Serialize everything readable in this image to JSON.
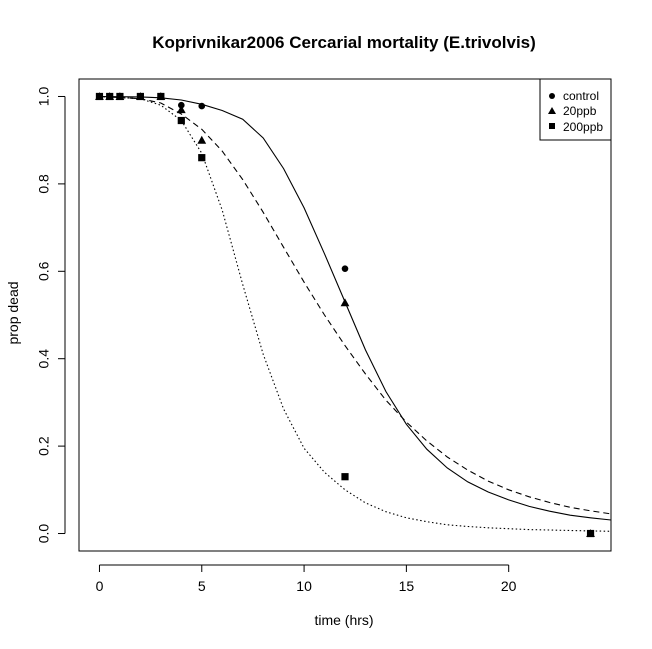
{
  "chart_data": {
    "type": "scatter",
    "title": "Koprivnikar2006 Cercarial mortality (E.trivolvis)",
    "xlabel": "time (hrs)",
    "ylabel": "prop dead",
    "xlim": [
      -1,
      25
    ],
    "ylim": [
      -0.04,
      1.04
    ],
    "xticks": [
      0,
      5,
      10,
      15,
      20
    ],
    "yticks": [
      0.0,
      0.2,
      0.4,
      0.6,
      0.8,
      1.0
    ],
    "xtick_labels": [
      "0",
      "5",
      "10",
      "15",
      "20"
    ],
    "ytick_labels": [
      "0.0",
      "0.2",
      "0.4",
      "0.6",
      "0.8",
      "1.0"
    ],
    "legend_position": "top-right",
    "series": [
      {
        "name": "control",
        "marker": "circle",
        "line": "solid",
        "points": [
          [
            0,
            1.0
          ],
          [
            0.5,
            1.0
          ],
          [
            1,
            1.0
          ],
          [
            2,
            1.0
          ],
          [
            3,
            1.0
          ],
          [
            4,
            0.98
          ],
          [
            5,
            0.978
          ],
          [
            12,
            0.606
          ],
          [
            24,
            0.0
          ]
        ],
        "curve": [
          [
            0,
            1.0
          ],
          [
            2,
            0.999
          ],
          [
            3,
            0.997
          ],
          [
            4,
            0.992
          ],
          [
            5,
            0.982
          ],
          [
            6,
            0.968
          ],
          [
            7,
            0.948
          ],
          [
            8,
            0.905
          ],
          [
            9,
            0.835
          ],
          [
            10,
            0.745
          ],
          [
            11,
            0.64
          ],
          [
            12,
            0.53
          ],
          [
            13,
            0.42
          ],
          [
            14,
            0.325
          ],
          [
            15,
            0.25
          ],
          [
            16,
            0.193
          ],
          [
            17,
            0.15
          ],
          [
            18,
            0.118
          ],
          [
            19,
            0.095
          ],
          [
            20,
            0.077
          ],
          [
            21,
            0.062
          ],
          [
            22,
            0.051
          ],
          [
            23,
            0.042
          ],
          [
            24,
            0.036
          ],
          [
            25,
            0.031
          ]
        ]
      },
      {
        "name": "20ppb",
        "marker": "triangle",
        "line": "dashed",
        "points": [
          [
            0,
            1.0
          ],
          [
            0.5,
            1.0
          ],
          [
            1,
            1.0
          ],
          [
            2,
            1.0
          ],
          [
            3,
            1.0
          ],
          [
            4,
            0.97
          ],
          [
            5,
            0.9
          ],
          [
            12,
            0.528
          ],
          [
            24,
            0.0
          ]
        ],
        "curve": [
          [
            0,
            1.0
          ],
          [
            2,
            0.995
          ],
          [
            3,
            0.985
          ],
          [
            4,
            0.96
          ],
          [
            5,
            0.925
          ],
          [
            6,
            0.875
          ],
          [
            7,
            0.81
          ],
          [
            8,
            0.735
          ],
          [
            9,
            0.655
          ],
          [
            10,
            0.575
          ],
          [
            11,
            0.5
          ],
          [
            12,
            0.43
          ],
          [
            13,
            0.365
          ],
          [
            14,
            0.305
          ],
          [
            15,
            0.255
          ],
          [
            16,
            0.212
          ],
          [
            17,
            0.175
          ],
          [
            18,
            0.145
          ],
          [
            19,
            0.12
          ],
          [
            20,
            0.1
          ],
          [
            21,
            0.084
          ],
          [
            22,
            0.071
          ],
          [
            23,
            0.06
          ],
          [
            24,
            0.052
          ],
          [
            25,
            0.045
          ]
        ]
      },
      {
        "name": "200ppb",
        "marker": "square",
        "line": "dotted",
        "points": [
          [
            0,
            1.0
          ],
          [
            0.5,
            1.0
          ],
          [
            1,
            1.0
          ],
          [
            2,
            1.0
          ],
          [
            3,
            1.0
          ],
          [
            4,
            0.945
          ],
          [
            5,
            0.86
          ],
          [
            12,
            0.13
          ],
          [
            24,
            0.0
          ]
        ],
        "curve": [
          [
            0,
            1.0
          ],
          [
            2,
            0.995
          ],
          [
            3,
            0.98
          ],
          [
            4,
            0.945
          ],
          [
            5,
            0.87
          ],
          [
            6,
            0.74
          ],
          [
            7,
            0.57
          ],
          [
            8,
            0.41
          ],
          [
            9,
            0.285
          ],
          [
            10,
            0.195
          ],
          [
            11,
            0.14
          ],
          [
            12,
            0.1
          ],
          [
            13,
            0.07
          ],
          [
            14,
            0.05
          ],
          [
            15,
            0.036
          ],
          [
            16,
            0.027
          ],
          [
            17,
            0.02
          ],
          [
            18,
            0.016
          ],
          [
            19,
            0.013
          ],
          [
            20,
            0.011
          ],
          [
            21,
            0.009
          ],
          [
            22,
            0.008
          ],
          [
            23,
            0.007
          ],
          [
            24,
            0.006
          ],
          [
            25,
            0.005
          ]
        ]
      }
    ]
  }
}
